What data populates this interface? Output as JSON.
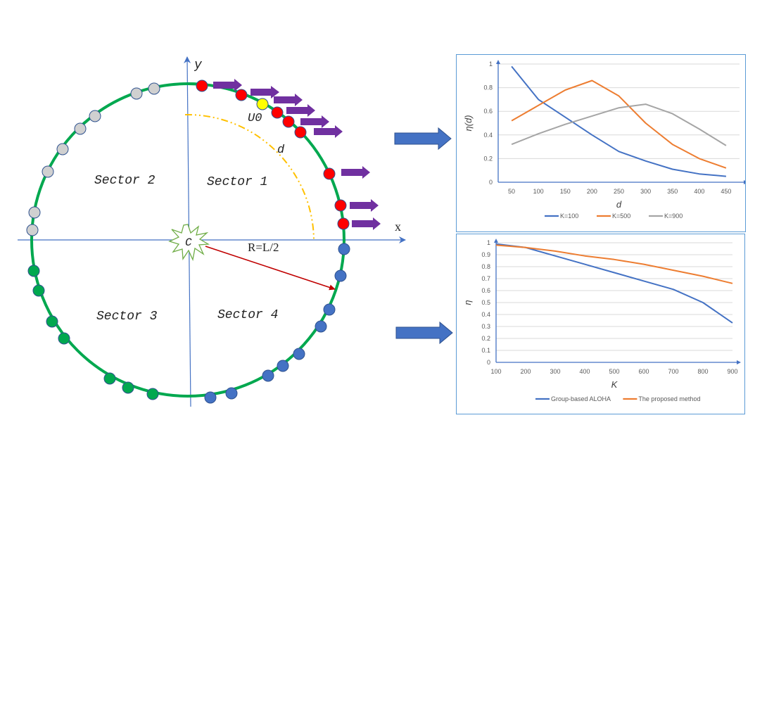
{
  "diagram": {
    "axis_x_label": "x",
    "axis_y_label": "y",
    "center_label": "C",
    "radius_label": "R=L/2",
    "distance_label": "d",
    "user_label": "U0",
    "sectors": [
      {
        "label": "Sector 1"
      },
      {
        "label": "Sector 2"
      },
      {
        "label": "Sector 3"
      },
      {
        "label": "Sector 4"
      }
    ],
    "colors": {
      "circle": "#00a84f",
      "axis": "#4472c4",
      "sector1_nodes": "#ff0000",
      "sector2_nodes": "#d0d0d0",
      "sector3_nodes": "#00a84f",
      "sector4_nodes": "#4472c4",
      "target_node": "#ffff00",
      "motion_arrow": "#7030a0",
      "radius_arrow": "#c00000",
      "distance_arc": "#ffc000",
      "flow_arrow": "#4472c4"
    }
  },
  "chart_data": [
    {
      "type": "line",
      "title": "",
      "xlabel": "d",
      "ylabel": "η(d)",
      "categories": [
        50,
        100,
        150,
        200,
        250,
        300,
        350,
        400,
        450
      ],
      "ylim": [
        0,
        1
      ],
      "yticks": [
        "0",
        "0.2",
        "0.4",
        "0.6",
        "0.8",
        "1"
      ],
      "grid": true,
      "legend_position": "bottom",
      "series": [
        {
          "name": "K=100",
          "color": "#4472c4",
          "values": [
            0.98,
            0.7,
            0.55,
            0.4,
            0.26,
            0.18,
            0.11,
            0.07,
            0.05
          ]
        },
        {
          "name": "K=500",
          "color": "#ed7d31",
          "values": [
            0.52,
            0.65,
            0.78,
            0.86,
            0.73,
            0.5,
            0.32,
            0.2,
            0.12
          ]
        },
        {
          "name": "K=900",
          "color": "#a5a5a5",
          "values": [
            0.32,
            0.41,
            0.49,
            0.56,
            0.63,
            0.66,
            0.58,
            0.45,
            0.31
          ]
        }
      ]
    },
    {
      "type": "line",
      "title": "",
      "xlabel": "K",
      "ylabel": "η",
      "categories": [
        100,
        200,
        300,
        400,
        500,
        600,
        700,
        800,
        900
      ],
      "ylim": [
        0,
        1
      ],
      "yticks": [
        "0",
        "0.1",
        "0.2",
        "0.3",
        "0.4",
        "0.5",
        "0.6",
        "0.7",
        "0.8",
        "0.9",
        "1"
      ],
      "grid": true,
      "legend_position": "bottom",
      "series": [
        {
          "name": "Group-based ALOHA",
          "color": "#4472c4",
          "values": [
            0.99,
            0.96,
            0.89,
            0.82,
            0.75,
            0.68,
            0.61,
            0.5,
            0.33
          ]
        },
        {
          "name": "The proposed method",
          "color": "#ed7d31",
          "values": [
            0.98,
            0.96,
            0.93,
            0.89,
            0.86,
            0.82,
            0.77,
            0.72,
            0.66
          ]
        }
      ]
    }
  ]
}
